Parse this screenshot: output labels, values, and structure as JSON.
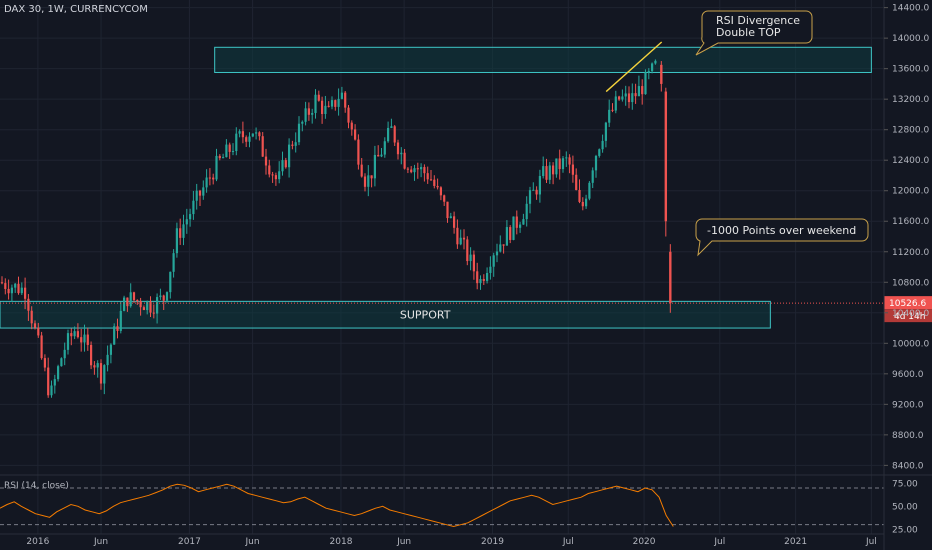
{
  "header": {
    "title": "DAX 30, 1W, CURRENCYCOM"
  },
  "colors": {
    "background": "#131722",
    "up": "#26a69a",
    "down": "#ef5350",
    "zone_border": "#3ec6c6",
    "zone_fill": "#0e3a40",
    "trendline": "#f5d33c",
    "callout_border": "#c8a14a",
    "rsi_line": "#f57c00",
    "price_label": "#ef5350"
  },
  "chart_data": [
    {
      "type": "candlestick",
      "title": "DAX 30, 1W, CURRENCYCOM",
      "ylim": [
        8300,
        14500
      ],
      "y_ticks": [
        8400,
        8800,
        9200,
        9600,
        10000,
        10400,
        10800,
        11200,
        11600,
        12000,
        12400,
        12800,
        13200,
        13600,
        14000,
        14400
      ],
      "y_tick_labels": [
        "8400.0",
        "8800.0",
        "9200.0",
        "9600.0",
        "10000.0",
        "10400.0",
        "10800.0",
        "11200.0",
        "11600.0",
        "12000.0",
        "12400.0",
        "12800.0",
        "13200.0",
        "13600.0",
        "14000.0",
        "14400.0"
      ],
      "x_ticks": [
        "2016",
        "Jun",
        "2017",
        "Jun",
        "2018",
        "Jun",
        "2019",
        "Jul",
        "2020",
        "Jul",
        "2021",
        "Jul"
      ],
      "last_price": "10526.6",
      "countdown": "4d 14h",
      "path_points": [
        [
          "2015-10",
          10800
        ],
        [
          "2015-12",
          10700
        ],
        [
          "2016-01",
          10000
        ],
        [
          "2016-02",
          9300
        ],
        [
          "2016-03",
          9900
        ],
        [
          "2016-04",
          10200
        ],
        [
          "2016-06",
          9600
        ],
        [
          "2016-08",
          10600
        ],
        [
          "2016-10",
          10500
        ],
        [
          "2016-11",
          10600
        ],
        [
          "2016-12",
          11400
        ],
        [
          "2017-01",
          11700
        ],
        [
          "2017-03",
          12300
        ],
        [
          "2017-05",
          12700
        ],
        [
          "2017-06",
          12800
        ],
        [
          "2017-08",
          12100
        ],
        [
          "2017-09",
          12600
        ],
        [
          "2017-11",
          13200
        ],
        [
          "2017-12",
          13000
        ],
        [
          "2018-01",
          13300
        ],
        [
          "2018-03",
          12100
        ],
        [
          "2018-05",
          12800
        ],
        [
          "2018-06",
          12400
        ],
        [
          "2018-08",
          12200
        ],
        [
          "2018-10",
          11500
        ],
        [
          "2018-12",
          10800
        ],
        [
          "2019-01",
          11200
        ],
        [
          "2019-03",
          11600
        ],
        [
          "2019-05",
          12200
        ],
        [
          "2019-07",
          12400
        ],
        [
          "2019-08",
          11700
        ],
        [
          "2019-09",
          12400
        ],
        [
          "2019-10",
          12900
        ],
        [
          "2019-11",
          13200
        ],
        [
          "2019-12",
          13200
        ],
        [
          "2020-01",
          13400
        ],
        [
          "2020-02",
          13650
        ],
        [
          "2020-03",
          11200
        ],
        [
          "2020-03",
          10526.6
        ]
      ],
      "zones": [
        {
          "label": "",
          "range": [
            13550,
            13880
          ],
          "x_from": "2017-03",
          "x_to": "2021-07"
        },
        {
          "label": "SUPPORT",
          "range": [
            10200,
            10550
          ],
          "x_from": "2015-10",
          "x_to": "2020-11"
        }
      ],
      "annotations": [
        {
          "text_lines": [
            "RSI Divergence",
            "Double TOP"
          ]
        },
        {
          "text_lines": [
            "-1000 Points over weekend"
          ]
        }
      ]
    },
    {
      "type": "line",
      "title": "RSI (14, close)",
      "ylim": [
        22,
        82
      ],
      "y_ticks": [
        25,
        50,
        75
      ],
      "y_tick_labels": [
        "25.00",
        "50.00",
        "75.00"
      ],
      "guide_levels": [
        70,
        30
      ],
      "series": [
        {
          "values": [
            48,
            52,
            55,
            50,
            46,
            42,
            40,
            38,
            44,
            48,
            52,
            50,
            46,
            44,
            42,
            45,
            50,
            54,
            56,
            58,
            60,
            62,
            65,
            68,
            72,
            74,
            73,
            70,
            66,
            68,
            70,
            72,
            74,
            72,
            68,
            64,
            62,
            60,
            58,
            56,
            54,
            55,
            58,
            60,
            56,
            52,
            48,
            46,
            44,
            42,
            40,
            42,
            45,
            48,
            50,
            46,
            44,
            42,
            40,
            38,
            36,
            34,
            32,
            30,
            28,
            30,
            32,
            36,
            40,
            44,
            48,
            52,
            56,
            58,
            60,
            62,
            60,
            56,
            52,
            54,
            56,
            58,
            60,
            64,
            66,
            68,
            70,
            72,
            70,
            68,
            66,
            70,
            68,
            60,
            40,
            28
          ]
        }
      ]
    }
  ]
}
